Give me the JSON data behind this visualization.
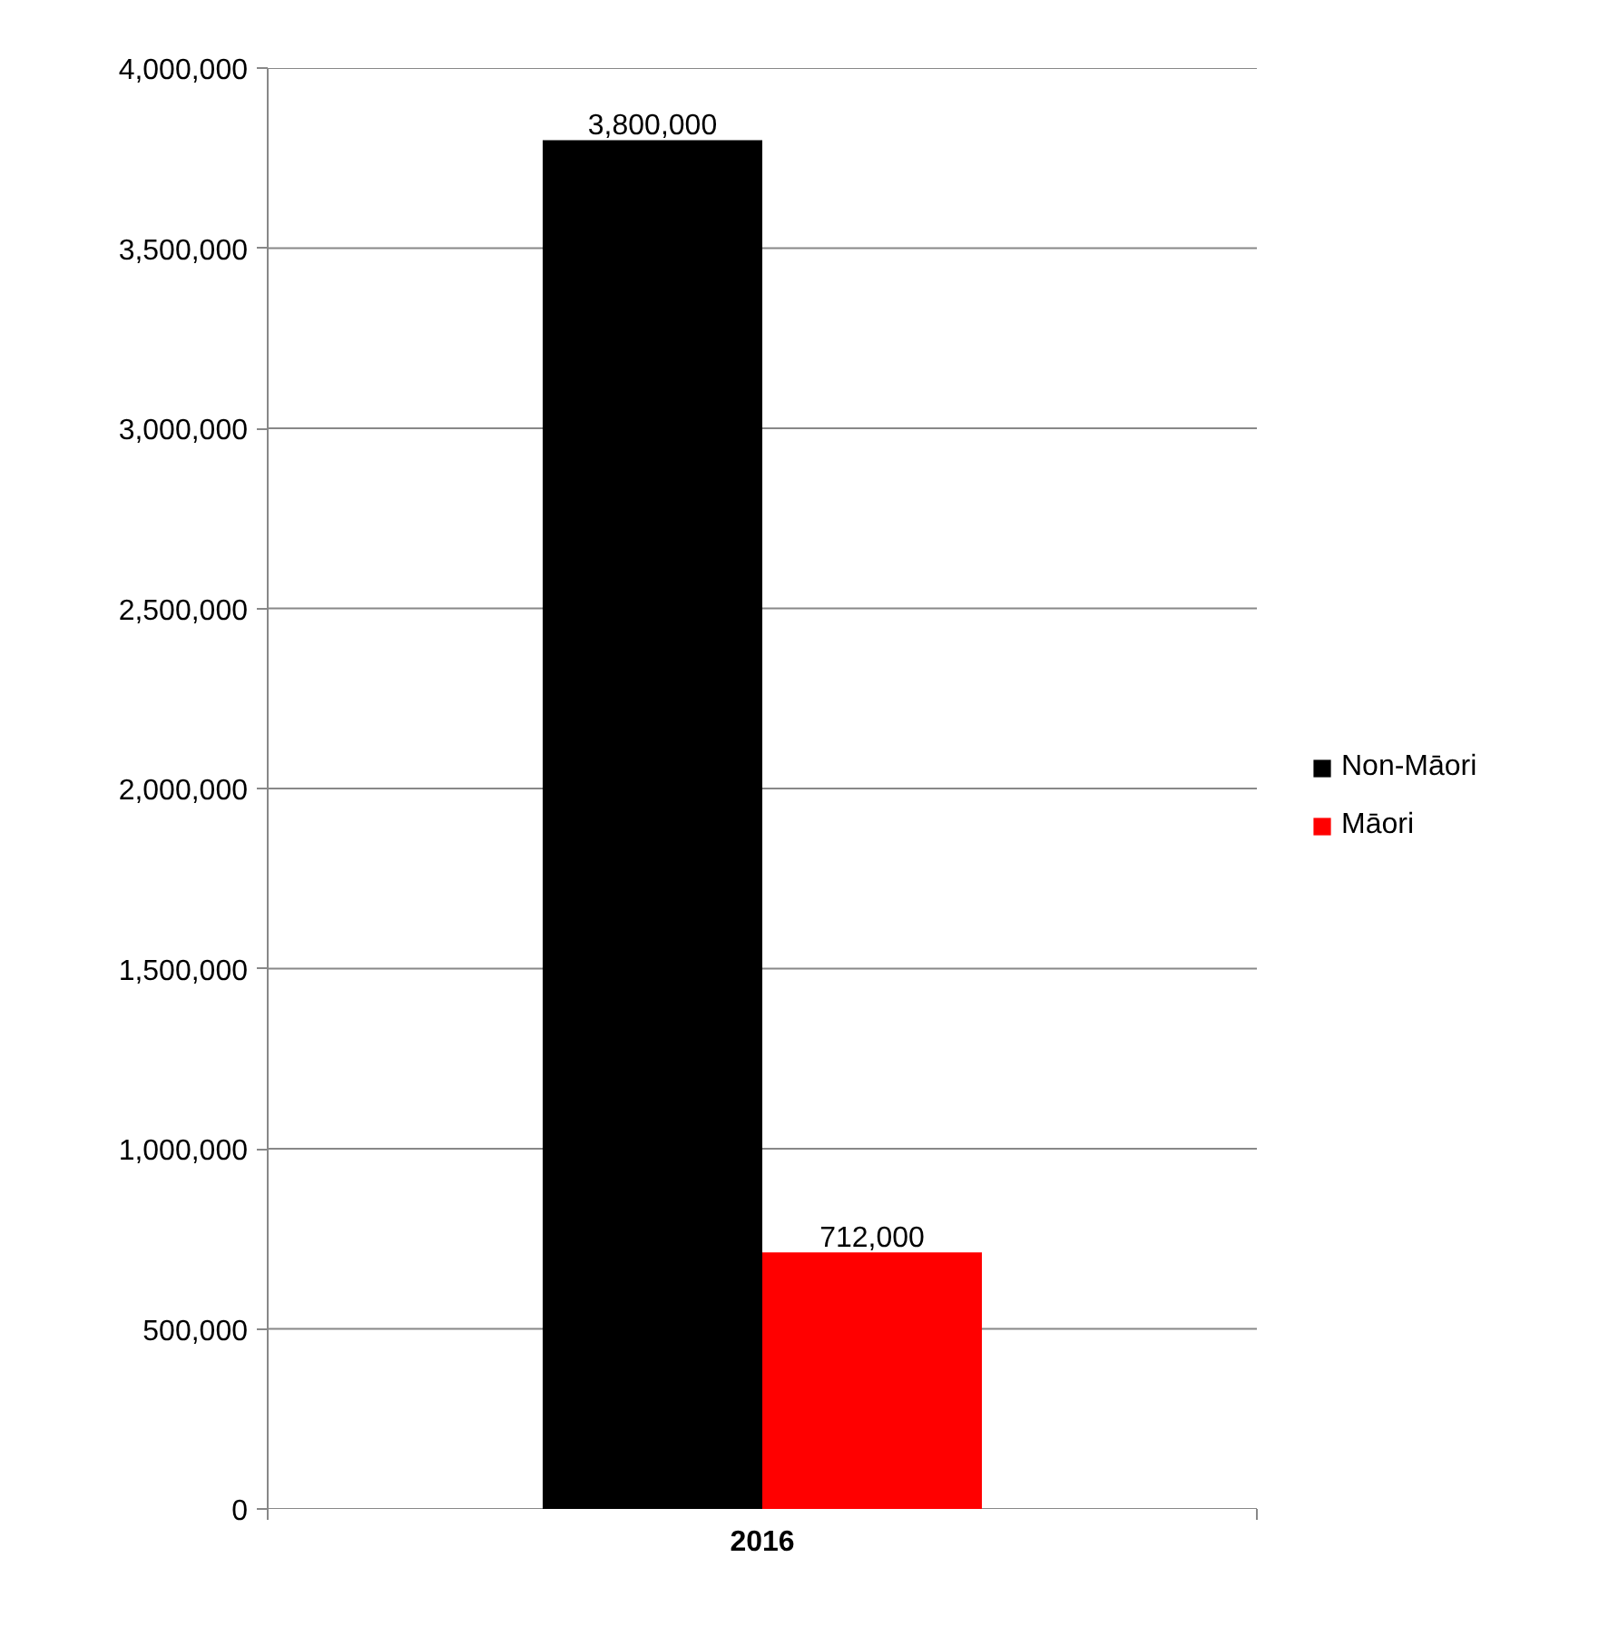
{
  "chart_data": {
    "type": "bar",
    "categories": [
      "2016"
    ],
    "series": [
      {
        "name": "Non-Māori",
        "color": "#000000",
        "values": [
          3800000
        ],
        "value_labels": [
          "3,800,000"
        ]
      },
      {
        "name": "Māori",
        "color": "#ff0000",
        "values": [
          712000
        ],
        "value_labels": [
          "712,000"
        ]
      }
    ],
    "ylim": [
      0,
      4000000
    ],
    "yticks": [
      {
        "value": 0,
        "label": "0"
      },
      {
        "value": 500000,
        "label": "500,000"
      },
      {
        "value": 1000000,
        "label": "1,000,000"
      },
      {
        "value": 1500000,
        "label": "1,500,000"
      },
      {
        "value": 2000000,
        "label": "2,000,000"
      },
      {
        "value": 2500000,
        "label": "2,500,000"
      },
      {
        "value": 3000000,
        "label": "3,000,000"
      },
      {
        "value": 3500000,
        "label": "3,500,000"
      },
      {
        "value": 4000000,
        "label": "4,000,000"
      }
    ],
    "grid": "y",
    "legend": "right"
  }
}
